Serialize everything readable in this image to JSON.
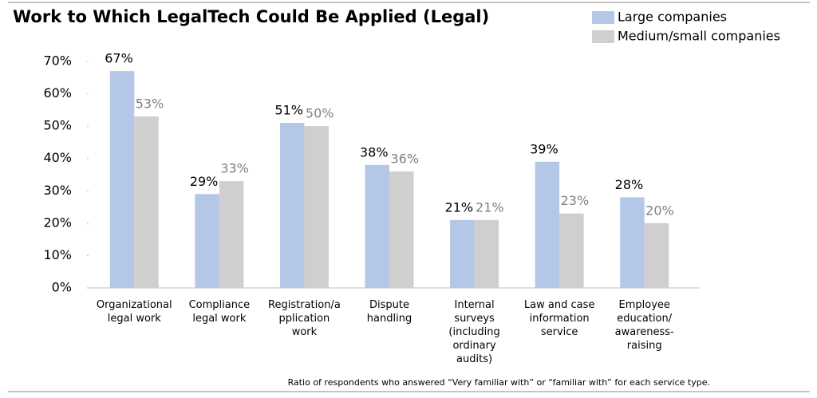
{
  "chart_data": {
    "type": "bar",
    "title": "Work to Which LegalTech Could Be Applied (Legal)",
    "categories": [
      "Organizational\nlegal work",
      "Compliance\nlegal work",
      "Registration/a\npplication\nwork",
      "Dispute\nhandling",
      "Internal\nsurveys\n(including\nordinary\naudits)",
      "Law and case\ninformation\nservice",
      "Employee\neducation/\nawareness-\nraising"
    ],
    "series": [
      {
        "name": "Large companies",
        "color": "#b4c7e7",
        "label_color": "#000000",
        "values": [
          67,
          29,
          51,
          38,
          21,
          39,
          28
        ],
        "value_labels": [
          "67%",
          "29%",
          "51%",
          "38%",
          "21%",
          "39%",
          "28%"
        ]
      },
      {
        "name": "Medium/small companies",
        "color": "#d0cece",
        "label_color": "#808080",
        "values": [
          53,
          33,
          50,
          36,
          21,
          23,
          20
        ],
        "value_labels": [
          "53%",
          "33%",
          "50%",
          "36%",
          "21%",
          "23%",
          "20%"
        ]
      }
    ],
    "ylim": [
      0,
      70
    ],
    "yticks": [
      {
        "value": 0,
        "label": "0%"
      },
      {
        "value": 10,
        "label": "10%"
      },
      {
        "value": 20,
        "label": "20%"
      },
      {
        "value": 30,
        "label": "30%"
      },
      {
        "value": 40,
        "label": "40%"
      },
      {
        "value": 50,
        "label": "50%"
      },
      {
        "value": 60,
        "label": "60%"
      },
      {
        "value": 70,
        "label": "70%"
      }
    ],
    "note": "Ratio of respondents who answered “Very familiar with” or “familiar with” for each service type."
  }
}
